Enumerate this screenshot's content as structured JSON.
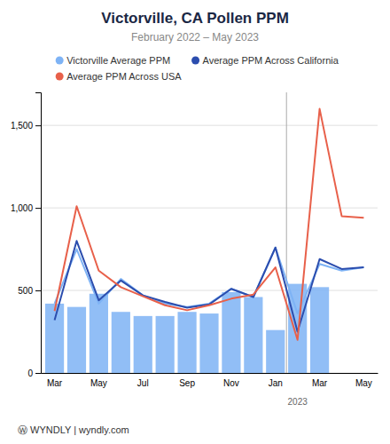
{
  "chart_data": {
    "type": "bar",
    "title": "Victorville, CA Pollen PPM",
    "subtitle": "February 2022 – May 2023",
    "categories": [
      "Mar",
      null,
      "May",
      null,
      "Jul",
      null,
      "Sep",
      null,
      "Nov",
      null,
      "Jan",
      null,
      "Mar",
      null,
      "May"
    ],
    "series": [
      {
        "type": "bar",
        "color": "#7EB3F5",
        "values": [
          420,
          400,
          480,
          370,
          345,
          345,
          370,
          360,
          490,
          460,
          260,
          540,
          520,
          null,
          null
        ]
      },
      {
        "name": "Victorville Average PPM",
        "type": "line",
        "color": "#7EB3F5",
        "values": [
          420,
          750,
          420,
          570,
          470,
          420,
          400,
          420,
          510,
          460,
          760,
          360,
          660,
          620,
          640
        ]
      },
      {
        "name": "Average PPM Across California",
        "type": "line",
        "color": "#2B4DAE",
        "values": [
          320,
          800,
          440,
          560,
          470,
          430,
          395,
          415,
          510,
          460,
          760,
          250,
          690,
          630,
          640
        ]
      },
      {
        "name": "Average PPM Across USA",
        "type": "line",
        "color": "#E8604A",
        "values": [
          375,
          1010,
          620,
          520,
          465,
          410,
          380,
          410,
          450,
          475,
          640,
          200,
          1600,
          950,
          940
        ]
      }
    ],
    "ylim": [
      0,
      1700
    ],
    "yticks": [
      0,
      500,
      {
        "value": 1000,
        "label": "1,000"
      },
      {
        "value": 1500,
        "label": "1,500"
      }
    ],
    "grid": true,
    "legend": "top",
    "annotations": [
      {
        "text": "2023",
        "x": 10.5
      }
    ],
    "footer": "Ⓦ  WYNDLY  |  wyndly.com"
  }
}
